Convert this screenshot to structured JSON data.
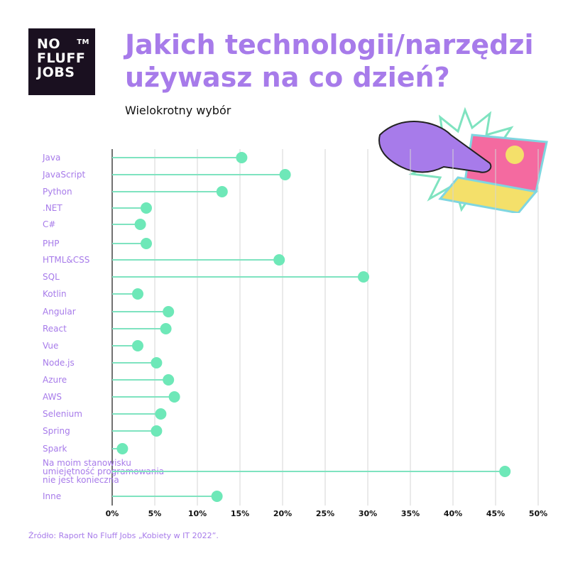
{
  "logo": {
    "lines": [
      "NO",
      "FLUFF",
      "JOBS"
    ],
    "tm": "TM"
  },
  "title": "Jakich technologii/narzędzi używasz na co dzień?",
  "subtitle": "Wielokrotny wybór",
  "source": "Źródło: Raport No Fluff Jobs „Kobiety w IT 2022”.",
  "colors": {
    "accent": "#a77bea",
    "dot": "#6ee8b8",
    "line": "#7fe3c0"
  },
  "chart_data": {
    "type": "lollipop",
    "orientation": "horizontal",
    "categories": [
      ".Java",
      "JavaScript",
      "Python",
      ".NET",
      "C#",
      "PHP",
      "HTML&CSS",
      "SQL",
      "Kotlin",
      "Angular",
      "React",
      "Vue",
      "Node.js",
      "Azure",
      "AWS",
      "Selenium",
      "Spring",
      "Spark",
      "Na moim stanowisku umiejętność programowania nie jest konieczna",
      "Inne"
    ],
    "values": [
      15.2,
      20.3,
      12.9,
      4.0,
      3.3,
      4.0,
      19.6,
      29.5,
      3.0,
      6.6,
      6.3,
      3.0,
      5.2,
      6.6,
      7.3,
      5.7,
      5.2,
      1.2,
      46.1,
      12.3
    ],
    "xlim": [
      0,
      50
    ],
    "xticks": [
      "0%",
      "5%",
      "10%",
      "15%",
      "20%",
      "25%",
      "30%",
      "35%",
      "40%",
      "45%",
      "50%"
    ],
    "grid": true
  }
}
